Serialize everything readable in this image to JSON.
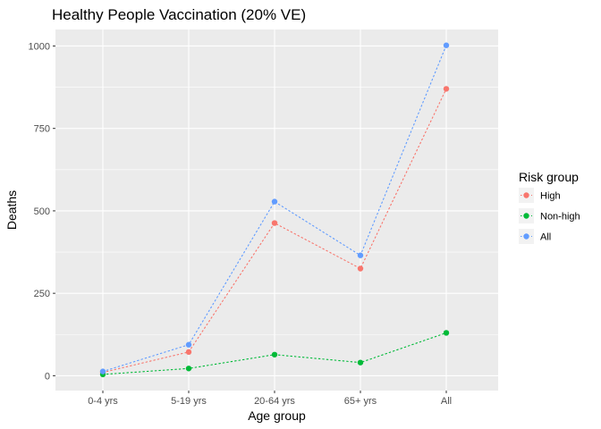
{
  "chart_data": {
    "type": "line",
    "title": "Healthy People Vaccination (20% VE)",
    "xlabel": "Age group",
    "ylabel": "Deaths",
    "categories": [
      "0-4 yrs",
      "5-19 yrs",
      "20-64 yrs",
      "65+ yrs",
      "All"
    ],
    "ylim": [
      -45,
      1050
    ],
    "yticks": [
      0,
      250,
      500,
      750,
      1000
    ],
    "grid": true,
    "line_style": "dotted",
    "legend": {
      "title": "Risk group",
      "position": "right"
    },
    "series": [
      {
        "name": "High",
        "color": "#F8766D",
        "values": [
          10,
          72,
          463,
          325,
          870
        ]
      },
      {
        "name": "Non-high",
        "color": "#00BA38",
        "values": [
          4,
          22,
          64,
          40,
          130
        ]
      },
      {
        "name": "All",
        "color": "#619CFF",
        "values": [
          13,
          94,
          528,
          365,
          1002
        ]
      }
    ]
  }
}
